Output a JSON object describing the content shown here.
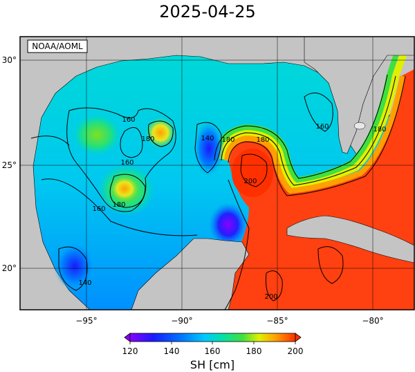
{
  "title": "2025-04-25",
  "credit": "NOAA/AOML",
  "map": {
    "lon_range": [
      -99,
      -78
    ],
    "lat_range": [
      18,
      31
    ],
    "x_ticks": [
      "−95°",
      "−90°",
      "−85°",
      "−80°"
    ],
    "y_ticks": [
      "20°",
      "25°",
      "30°"
    ],
    "grid": true
  },
  "contour_labels": [
    "160",
    "180",
    "140",
    "180",
    "160",
    "180",
    "200",
    "160",
    "180",
    "160",
    "140",
    "180",
    "200"
  ],
  "colorbar": {
    "label": "SH [cm]",
    "range": [
      120,
      200
    ],
    "ticks": [
      "120",
      "140",
      "160",
      "180",
      "200"
    ],
    "colors": [
      "#8a00ff",
      "#1a1aff",
      "#00c8ff",
      "#00e0b0",
      "#40e040",
      "#e0f000",
      "#ffa000",
      "#ff3000"
    ]
  },
  "colors": {
    "land": "#c4c4c4",
    "frame": "#000000"
  }
}
